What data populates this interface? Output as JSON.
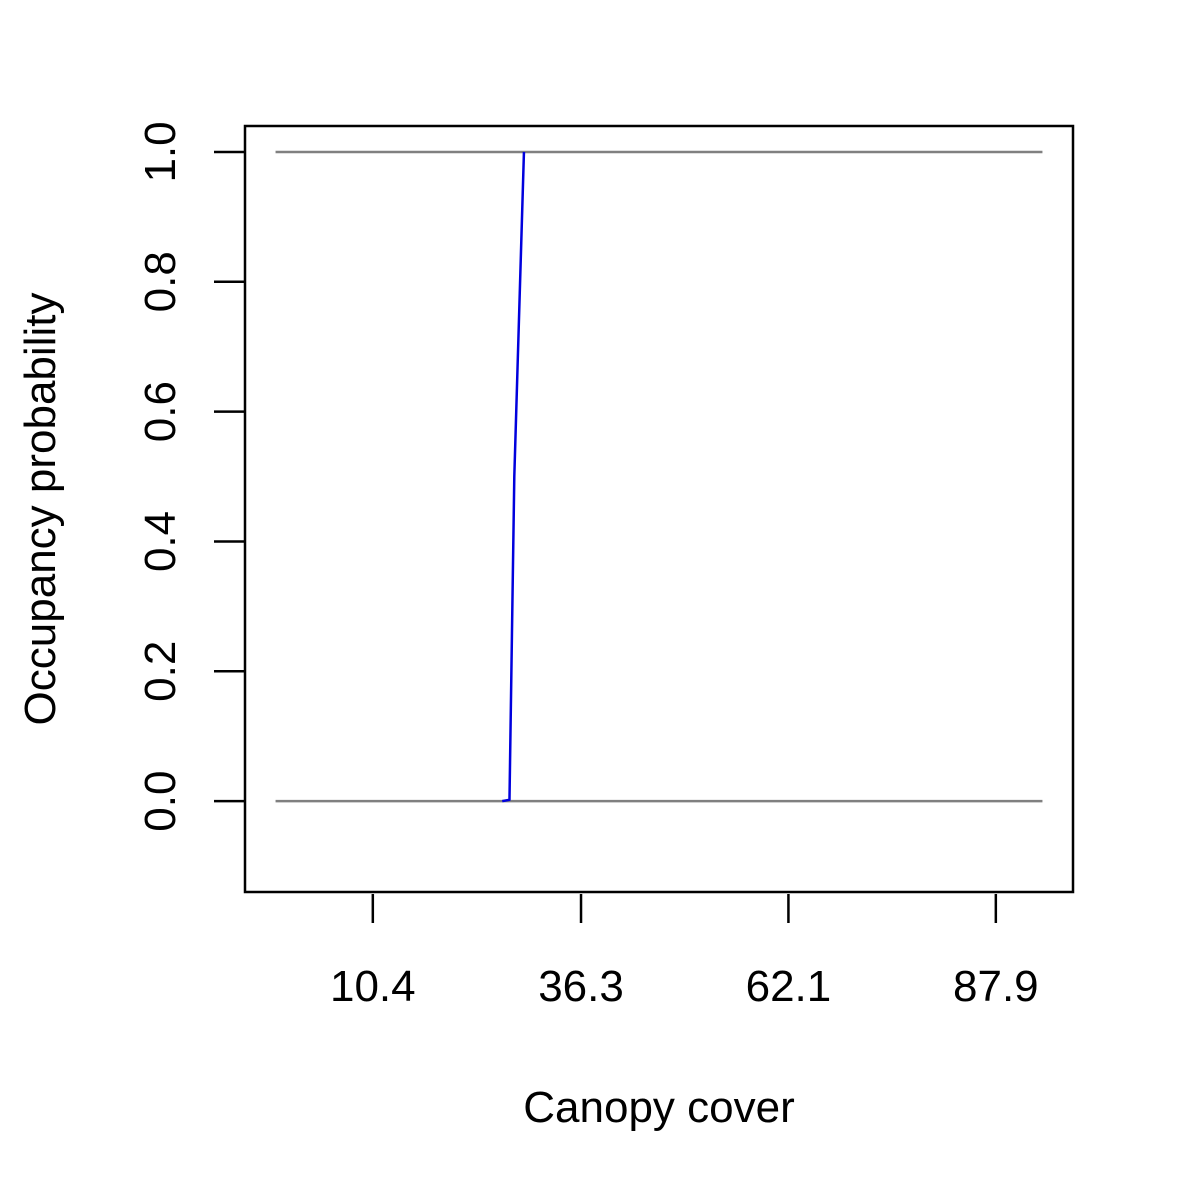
{
  "chart_data": {
    "type": "line",
    "title": "",
    "xlabel": "Canopy cover",
    "ylabel": "Occupancy probability",
    "xlim": [
      -5.5,
      97.5
    ],
    "ylim": [
      -0.14,
      1.04
    ],
    "x_ticks": [
      10.4,
      36.3,
      62.1,
      87.9
    ],
    "x_tick_labels": [
      "10.4",
      "36.3",
      "62.1",
      "87.9"
    ],
    "y_ticks": [
      0.0,
      0.2,
      0.4,
      0.6,
      0.8,
      1.0
    ],
    "y_tick_labels": [
      "0.0",
      "0.2",
      "0.4",
      "0.6",
      "0.8",
      "1.0"
    ],
    "grid": false,
    "reference_lines": [
      {
        "y": 0.0,
        "x_from": -1.7,
        "x_to": 93.7,
        "color": "#808080"
      },
      {
        "y": 1.0,
        "x_from": -1.7,
        "x_to": 93.7,
        "color": "#808080"
      }
    ],
    "series": [
      {
        "color": "#0000dd",
        "x": [
          26.5,
          27.4,
          28.0,
          29.2
        ],
        "y": [
          0.0,
          0.002,
          0.5,
          1.0
        ]
      }
    ]
  }
}
